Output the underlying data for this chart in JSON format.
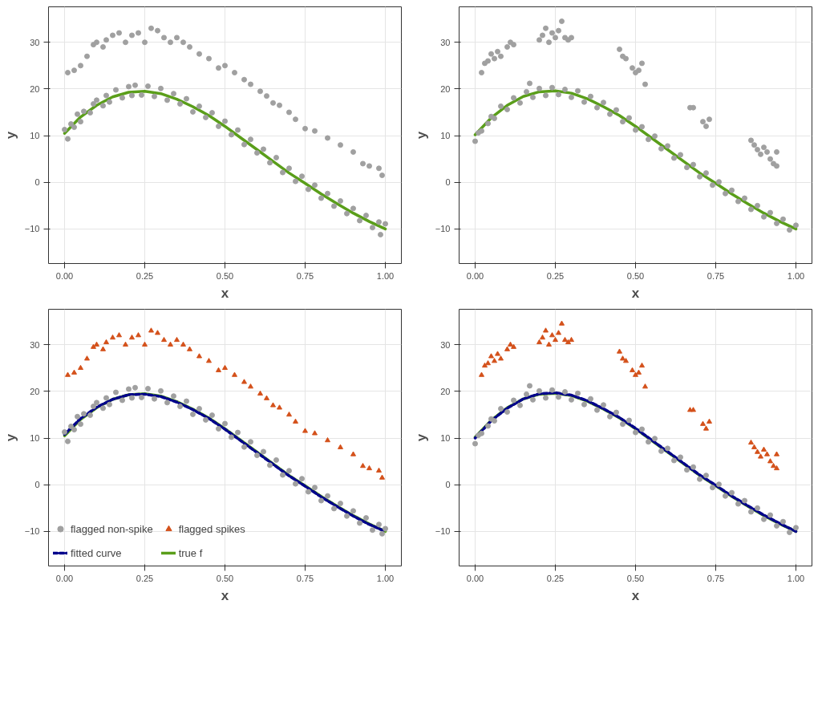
{
  "chart_data": [
    {
      "type": "scatter",
      "xlabel": "x",
      "ylabel": "y",
      "xlim": [
        -0.05,
        1.05
      ],
      "ylim": [
        -17.4,
        37.6
      ],
      "xticks": [
        {
          "value": 0,
          "label": "0.00"
        },
        {
          "value": 0.25,
          "label": "0.25"
        },
        {
          "value": 0.5,
          "label": "0.50"
        },
        {
          "value": 0.75,
          "label": "0.75"
        },
        {
          "value": 1,
          "label": "1.00"
        }
      ],
      "yticks": [
        -10,
        0,
        10,
        20,
        30
      ],
      "grid": true,
      "series": [
        {
          "type": "scatter",
          "marker": "circle",
          "color": "#a0a0a0",
          "x": [
            0,
            0.01,
            0.02,
            0.03,
            0.04,
            0.05,
            0.06,
            0.08,
            0.09,
            0.1,
            0.12,
            0.13,
            0.14,
            0.16,
            0.18,
            0.2,
            0.21,
            0.22,
            0.24,
            0.26,
            0.28,
            0.3,
            0.32,
            0.34,
            0.36,
            0.38,
            0.4,
            0.42,
            0.44,
            0.46,
            0.48,
            0.5,
            0.52,
            0.54,
            0.56,
            0.58,
            0.6,
            0.62,
            0.64,
            0.66,
            0.68,
            0.7,
            0.72,
            0.74,
            0.76,
            0.78,
            0.8,
            0.82,
            0.84,
            0.86,
            0.88,
            0.9,
            0.92,
            0.94,
            0.96,
            0.98,
            0.985,
            1
          ],
          "values": [
            11.3,
            9.3,
            12.5,
            11.8,
            14.6,
            13.0,
            15.2,
            14.9,
            16.8,
            17.6,
            16.4,
            18.6,
            17.2,
            19.8,
            18.1,
            20.5,
            18.6,
            20.8,
            18.7,
            20.6,
            18.4,
            20.1,
            17.6,
            19.0,
            16.8,
            17.9,
            15.1,
            16.3,
            13.9,
            14.9,
            12.0,
            13.1,
            10.2,
            11.2,
            8.1,
            9.2,
            6.3,
            7.1,
            4.2,
            5.3,
            2.1,
            3.0,
            0.2,
            1.3,
            -1.5,
            -0.6,
            -3.4,
            -2.4,
            -5.1,
            -4.0,
            -6.7,
            -5.6,
            -8.2,
            -7.1,
            -9.7,
            -8.5,
            -11.2,
            -8.9
          ]
        },
        {
          "type": "scatter",
          "marker": "circle",
          "color": "#a0a0a0",
          "x": [
            0.01,
            0.03,
            0.05,
            0.07,
            0.09,
            0.1,
            0.12,
            0.13,
            0.15,
            0.17,
            0.19,
            0.21,
            0.23,
            0.25,
            0.27,
            0.29,
            0.31,
            0.33,
            0.35,
            0.37,
            0.39,
            0.42,
            0.45,
            0.48,
            0.5,
            0.53,
            0.56,
            0.58,
            0.61,
            0.63,
            0.65,
            0.67,
            0.7,
            0.72,
            0.75,
            0.78,
            0.82,
            0.86,
            0.9,
            0.93,
            0.95,
            0.98,
            0.99
          ],
          "values": [
            23.5,
            24,
            25,
            27,
            29.5,
            30,
            29,
            30.5,
            31.5,
            32,
            30,
            31.5,
            32,
            30,
            33,
            32.5,
            31,
            30,
            31,
            30,
            29,
            27.5,
            26.5,
            24.5,
            25,
            23.5,
            22,
            21,
            19.5,
            18.5,
            17,
            16.5,
            15,
            13.5,
            11.5,
            11,
            9.5,
            8,
            6.5,
            4,
            3.5,
            3,
            1.5
          ]
        },
        {
          "type": "line",
          "line_style": "solid",
          "color": "#5a9e1a",
          "x": [
            0,
            0.05,
            0.1,
            0.15,
            0.2,
            0.25,
            0.3,
            0.35,
            0.4,
            0.45,
            0.5,
            0.55,
            0.6,
            0.65,
            0.7,
            0.75,
            0.8,
            0.85,
            0.9,
            0.95,
            1
          ],
          "values": [
            10.5,
            14,
            16.5,
            18.3,
            19.3,
            19.5,
            19,
            17.8,
            16.2,
            14.3,
            12,
            9.5,
            7,
            4.5,
            2,
            -0.2,
            -2.5,
            -4.6,
            -6.6,
            -8.4,
            -10
          ]
        }
      ]
    },
    {
      "type": "scatter",
      "xlabel": "x",
      "ylabel": "y",
      "xlim": [
        -0.05,
        1.05
      ],
      "ylim": [
        -17.4,
        37.6
      ],
      "xticks": [
        {
          "value": 0,
          "label": "0.00"
        },
        {
          "value": 0.25,
          "label": "0.25"
        },
        {
          "value": 0.5,
          "label": "0.50"
        },
        {
          "value": 0.75,
          "label": "0.75"
        },
        {
          "value": 1,
          "label": "1.00"
        }
      ],
      "yticks": [
        -10,
        0,
        10,
        20,
        30
      ],
      "grid": true,
      "series": [
        {
          "type": "scatter",
          "marker": "circle",
          "color": "#a0a0a0",
          "x": [
            0,
            0.01,
            0.02,
            0.04,
            0.05,
            0.06,
            0.08,
            0.1,
            0.12,
            0.14,
            0.16,
            0.17,
            0.18,
            0.2,
            0.22,
            0.24,
            0.26,
            0.28,
            0.3,
            0.32,
            0.34,
            0.36,
            0.38,
            0.4,
            0.42,
            0.44,
            0.46,
            0.48,
            0.5,
            0.52,
            0.54,
            0.56,
            0.58,
            0.6,
            0.62,
            0.64,
            0.66,
            0.68,
            0.7,
            0.72,
            0.74,
            0.76,
            0.78,
            0.8,
            0.82,
            0.84,
            0.86,
            0.88,
            0.9,
            0.92,
            0.94,
            0.96,
            0.98,
            1
          ],
          "values": [
            8.8,
            10.6,
            11.0,
            12.6,
            14.1,
            13.7,
            16.3,
            15.6,
            18.1,
            17.0,
            19.4,
            21.2,
            18.2,
            20.1,
            18.6,
            20.3,
            18.8,
            19.9,
            18.2,
            19.6,
            17.2,
            18.4,
            16.0,
            17.1,
            14.6,
            15.5,
            13.0,
            13.8,
            11.2,
            11.9,
            9.2,
            9.9,
            7.2,
            7.8,
            5.2,
            5.9,
            3.2,
            3.8,
            1.2,
            2.0,
            -0.6,
            0.1,
            -2.4,
            -1.7,
            -4.1,
            -3.4,
            -5.8,
            -5.0,
            -7.4,
            -6.5,
            -8.8,
            -7.9,
            -10.2,
            -9.2
          ]
        },
        {
          "type": "scatter",
          "marker": "circle",
          "color": "#a0a0a0",
          "x": [
            0.02,
            0.03,
            0.04,
            0.05,
            0.06,
            0.07,
            0.08,
            0.1,
            0.11,
            0.12,
            0.2,
            0.21,
            0.22,
            0.23,
            0.24,
            0.25,
            0.26,
            0.27,
            0.28,
            0.29,
            0.3,
            0.45,
            0.46,
            0.47,
            0.49,
            0.5,
            0.51,
            0.52,
            0.53,
            0.67,
            0.68,
            0.71,
            0.72,
            0.73,
            0.86,
            0.87,
            0.88,
            0.89,
            0.9,
            0.91,
            0.92,
            0.93,
            0.94,
            0.94
          ],
          "values": [
            23.5,
            25.5,
            26,
            27.5,
            26.5,
            28,
            27,
            29,
            30,
            29.5,
            30.5,
            31.5,
            33,
            30,
            32,
            31,
            32.5,
            34.5,
            31,
            30.5,
            31,
            28.5,
            27,
            26.5,
            24.5,
            23.5,
            24,
            25.5,
            21,
            16,
            16,
            13,
            12,
            13.5,
            9,
            8,
            7,
            6,
            7.5,
            6.5,
            5,
            4,
            6.5,
            3.5
          ]
        },
        {
          "type": "line",
          "line_style": "solid",
          "color": "#5a9e1a",
          "x": [
            0,
            0.05,
            0.1,
            0.15,
            0.2,
            0.25,
            0.3,
            0.35,
            0.4,
            0.45,
            0.5,
            0.55,
            0.6,
            0.65,
            0.7,
            0.75,
            0.8,
            0.85,
            0.9,
            0.95,
            1
          ],
          "values": [
            10.2,
            13.8,
            16.5,
            18.4,
            19.4,
            19.6,
            19.1,
            17.9,
            16.2,
            14.3,
            12,
            9.5,
            7,
            4.5,
            2,
            -0.2,
            -2.5,
            -4.6,
            -6.6,
            -8.4,
            -10
          ]
        }
      ]
    },
    {
      "type": "scatter",
      "xlabel": "x",
      "ylabel": "y",
      "xlim": [
        -0.05,
        1.05
      ],
      "ylim": [
        -17.4,
        37.6
      ],
      "xticks": [
        {
          "value": 0,
          "label": "0.00"
        },
        {
          "value": 0.25,
          "label": "0.25"
        },
        {
          "value": 0.5,
          "label": "0.50"
        },
        {
          "value": 0.75,
          "label": "0.75"
        },
        {
          "value": 1,
          "label": "1.00"
        }
      ],
      "yticks": [
        -10,
        0,
        10,
        20,
        30
      ],
      "grid": true,
      "legend": "bottom left",
      "series": [
        {
          "name": "flagged non-spike",
          "type": "scatter",
          "marker": "circle",
          "color": "#a0a0a0",
          "x": [
            0,
            0.01,
            0.02,
            0.03,
            0.04,
            0.05,
            0.06,
            0.08,
            0.09,
            0.1,
            0.12,
            0.13,
            0.14,
            0.16,
            0.18,
            0.2,
            0.21,
            0.22,
            0.24,
            0.26,
            0.28,
            0.3,
            0.32,
            0.34,
            0.36,
            0.38,
            0.4,
            0.42,
            0.44,
            0.46,
            0.48,
            0.5,
            0.52,
            0.54,
            0.56,
            0.58,
            0.6,
            0.62,
            0.64,
            0.66,
            0.68,
            0.7,
            0.72,
            0.74,
            0.76,
            0.78,
            0.8,
            0.82,
            0.84,
            0.86,
            0.88,
            0.9,
            0.92,
            0.94,
            0.96,
            0.98,
            0.99,
            1
          ],
          "values": [
            11.3,
            9.3,
            12.5,
            11.8,
            14.6,
            13.0,
            15.2,
            14.9,
            16.8,
            17.6,
            16.4,
            18.6,
            17.2,
            19.8,
            18.1,
            20.5,
            18.6,
            20.8,
            18.7,
            20.6,
            18.4,
            20.1,
            17.6,
            19.0,
            16.8,
            17.9,
            15.1,
            16.3,
            13.9,
            14.9,
            12.0,
            13.1,
            10.2,
            11.2,
            8.1,
            9.2,
            6.3,
            7.1,
            4.2,
            5.3,
            2.1,
            3.0,
            0.2,
            1.3,
            -1.5,
            -0.6,
            -3.4,
            -2.4,
            -5.1,
            -4.0,
            -6.7,
            -5.6,
            -8.2,
            -7.1,
            -9.7,
            -8.5,
            -10.5,
            -9.4
          ]
        },
        {
          "name": "flagged spikes",
          "type": "scatter",
          "marker": "triangle",
          "color": "#d4511b",
          "x": [
            0.01,
            0.03,
            0.05,
            0.07,
            0.09,
            0.1,
            0.12,
            0.13,
            0.15,
            0.17,
            0.19,
            0.21,
            0.23,
            0.25,
            0.27,
            0.29,
            0.31,
            0.33,
            0.35,
            0.37,
            0.39,
            0.42,
            0.45,
            0.48,
            0.5,
            0.53,
            0.56,
            0.58,
            0.61,
            0.63,
            0.65,
            0.67,
            0.7,
            0.72,
            0.75,
            0.78,
            0.82,
            0.86,
            0.9,
            0.93,
            0.95,
            0.98,
            0.99
          ],
          "values": [
            23.5,
            24,
            25,
            27,
            29.5,
            30,
            29,
            30.5,
            31.5,
            32,
            30,
            31.5,
            32,
            30,
            33,
            32.5,
            31,
            30,
            31,
            30,
            29,
            27.5,
            26.5,
            24.5,
            25,
            23.5,
            22,
            21,
            19.5,
            18.5,
            17,
            16.5,
            15,
            13.5,
            11.5,
            11,
            9.5,
            8,
            6.5,
            4,
            3.5,
            3,
            1.5
          ]
        },
        {
          "name": "fitted curve",
          "type": "line",
          "line_style": "dashed",
          "color": "#00008b",
          "x": [
            0,
            0.05,
            0.1,
            0.15,
            0.2,
            0.25,
            0.3,
            0.35,
            0.4,
            0.45,
            0.5,
            0.55,
            0.6,
            0.65,
            0.7,
            0.75,
            0.8,
            0.85,
            0.9,
            0.95,
            1
          ],
          "values": [
            10.8,
            14.2,
            16.6,
            18.3,
            19.3,
            19.4,
            18.9,
            17.7,
            16.1,
            14.2,
            11.9,
            9.4,
            6.9,
            4.4,
            1.9,
            -0.3,
            -2.6,
            -4.7,
            -6.7,
            -8.5,
            -10
          ]
        },
        {
          "name": "true f",
          "type": "line",
          "line_style": "solid",
          "color": "#5a9e1a",
          "x": [
            0,
            0.05,
            0.1,
            0.15,
            0.2,
            0.25,
            0.3,
            0.35,
            0.4,
            0.45,
            0.5,
            0.55,
            0.6,
            0.65,
            0.7,
            0.75,
            0.8,
            0.85,
            0.9,
            0.95,
            1
          ],
          "values": [
            10.5,
            14,
            16.5,
            18.3,
            19.3,
            19.5,
            19,
            17.8,
            16.2,
            14.3,
            12,
            9.5,
            7,
            4.5,
            2,
            -0.2,
            -2.5,
            -4.6,
            -6.6,
            -8.4,
            -10
          ]
        }
      ]
    },
    {
      "type": "scatter",
      "xlabel": "x",
      "ylabel": "y",
      "xlim": [
        -0.05,
        1.05
      ],
      "ylim": [
        -17.4,
        37.6
      ],
      "xticks": [
        {
          "value": 0,
          "label": "0.00"
        },
        {
          "value": 0.25,
          "label": "0.25"
        },
        {
          "value": 0.5,
          "label": "0.50"
        },
        {
          "value": 0.75,
          "label": "0.75"
        },
        {
          "value": 1,
          "label": "1.00"
        }
      ],
      "yticks": [
        -10,
        0,
        10,
        20,
        30
      ],
      "grid": true,
      "series": [
        {
          "type": "scatter",
          "marker": "circle",
          "color": "#a0a0a0",
          "x": [
            0,
            0.01,
            0.02,
            0.04,
            0.05,
            0.06,
            0.08,
            0.1,
            0.12,
            0.14,
            0.16,
            0.17,
            0.18,
            0.2,
            0.22,
            0.24,
            0.26,
            0.28,
            0.3,
            0.32,
            0.34,
            0.36,
            0.38,
            0.4,
            0.42,
            0.44,
            0.46,
            0.48,
            0.5,
            0.52,
            0.54,
            0.56,
            0.58,
            0.6,
            0.62,
            0.64,
            0.66,
            0.68,
            0.7,
            0.72,
            0.74,
            0.76,
            0.78,
            0.8,
            0.82,
            0.84,
            0.86,
            0.88,
            0.9,
            0.92,
            0.94,
            0.96,
            0.98,
            1
          ],
          "values": [
            8.8,
            10.6,
            11.0,
            12.6,
            14.1,
            13.7,
            16.3,
            15.6,
            18.1,
            17.0,
            19.4,
            21.2,
            18.2,
            20.1,
            18.6,
            20.3,
            18.8,
            19.9,
            18.2,
            19.6,
            17.2,
            18.4,
            16.0,
            17.1,
            14.6,
            15.5,
            13.0,
            13.8,
            11.2,
            11.9,
            9.2,
            9.9,
            7.2,
            7.8,
            5.2,
            5.9,
            3.2,
            3.8,
            1.2,
            2.0,
            -0.6,
            0.1,
            -2.4,
            -1.7,
            -4.1,
            -3.4,
            -5.8,
            -5.0,
            -7.4,
            -6.5,
            -8.8,
            -7.9,
            -10.2,
            -9.2
          ]
        },
        {
          "type": "scatter",
          "marker": "triangle",
          "color": "#d4511b",
          "x": [
            0.02,
            0.03,
            0.04,
            0.05,
            0.06,
            0.07,
            0.08,
            0.1,
            0.11,
            0.12,
            0.2,
            0.21,
            0.22,
            0.23,
            0.24,
            0.25,
            0.26,
            0.27,
            0.28,
            0.29,
            0.3,
            0.45,
            0.46,
            0.47,
            0.49,
            0.5,
            0.51,
            0.52,
            0.53,
            0.67,
            0.68,
            0.71,
            0.72,
            0.73,
            0.86,
            0.87,
            0.88,
            0.89,
            0.9,
            0.91,
            0.92,
            0.93,
            0.94,
            0.94
          ],
          "values": [
            23.5,
            25.5,
            26,
            27.5,
            26.5,
            28,
            27,
            29,
            30,
            29.5,
            30.5,
            31.5,
            33,
            30,
            32,
            31,
            32.5,
            34.5,
            31,
            30.5,
            31,
            28.5,
            27,
            26.5,
            24.5,
            23.5,
            24,
            25.5,
            21,
            16,
            16,
            13,
            12,
            13.5,
            9,
            8,
            7,
            6,
            7.5,
            6.5,
            5,
            4,
            6.5,
            3.5
          ]
        },
        {
          "type": "line",
          "line_style": "dashed",
          "color": "#00008b",
          "x": [
            0,
            0.05,
            0.1,
            0.15,
            0.2,
            0.25,
            0.3,
            0.35,
            0.4,
            0.45,
            0.5,
            0.55,
            0.6,
            0.65,
            0.7,
            0.75,
            0.8,
            0.85,
            0.9,
            0.95,
            1
          ],
          "values": [
            10.0,
            13.7,
            16.4,
            18.4,
            19.5,
            19.7,
            19.2,
            18.0,
            16.3,
            14.4,
            12.1,
            9.6,
            7.1,
            4.6,
            2.1,
            -0.1,
            -2.4,
            -4.5,
            -6.5,
            -8.3,
            -10
          ]
        },
        {
          "type": "line",
          "line_style": "solid",
          "color": "#5a9e1a",
          "x": [
            0,
            0.05,
            0.1,
            0.15,
            0.2,
            0.25,
            0.3,
            0.35,
            0.4,
            0.45,
            0.5,
            0.55,
            0.6,
            0.65,
            0.7,
            0.75,
            0.8,
            0.85,
            0.9,
            0.95,
            1
          ],
          "values": [
            10.2,
            13.8,
            16.5,
            18.4,
            19.4,
            19.6,
            19.1,
            17.9,
            16.2,
            14.3,
            12,
            9.5,
            7,
            4.5,
            2,
            -0.2,
            -2.5,
            -4.6,
            -6.6,
            -8.4,
            -10
          ]
        }
      ]
    }
  ]
}
